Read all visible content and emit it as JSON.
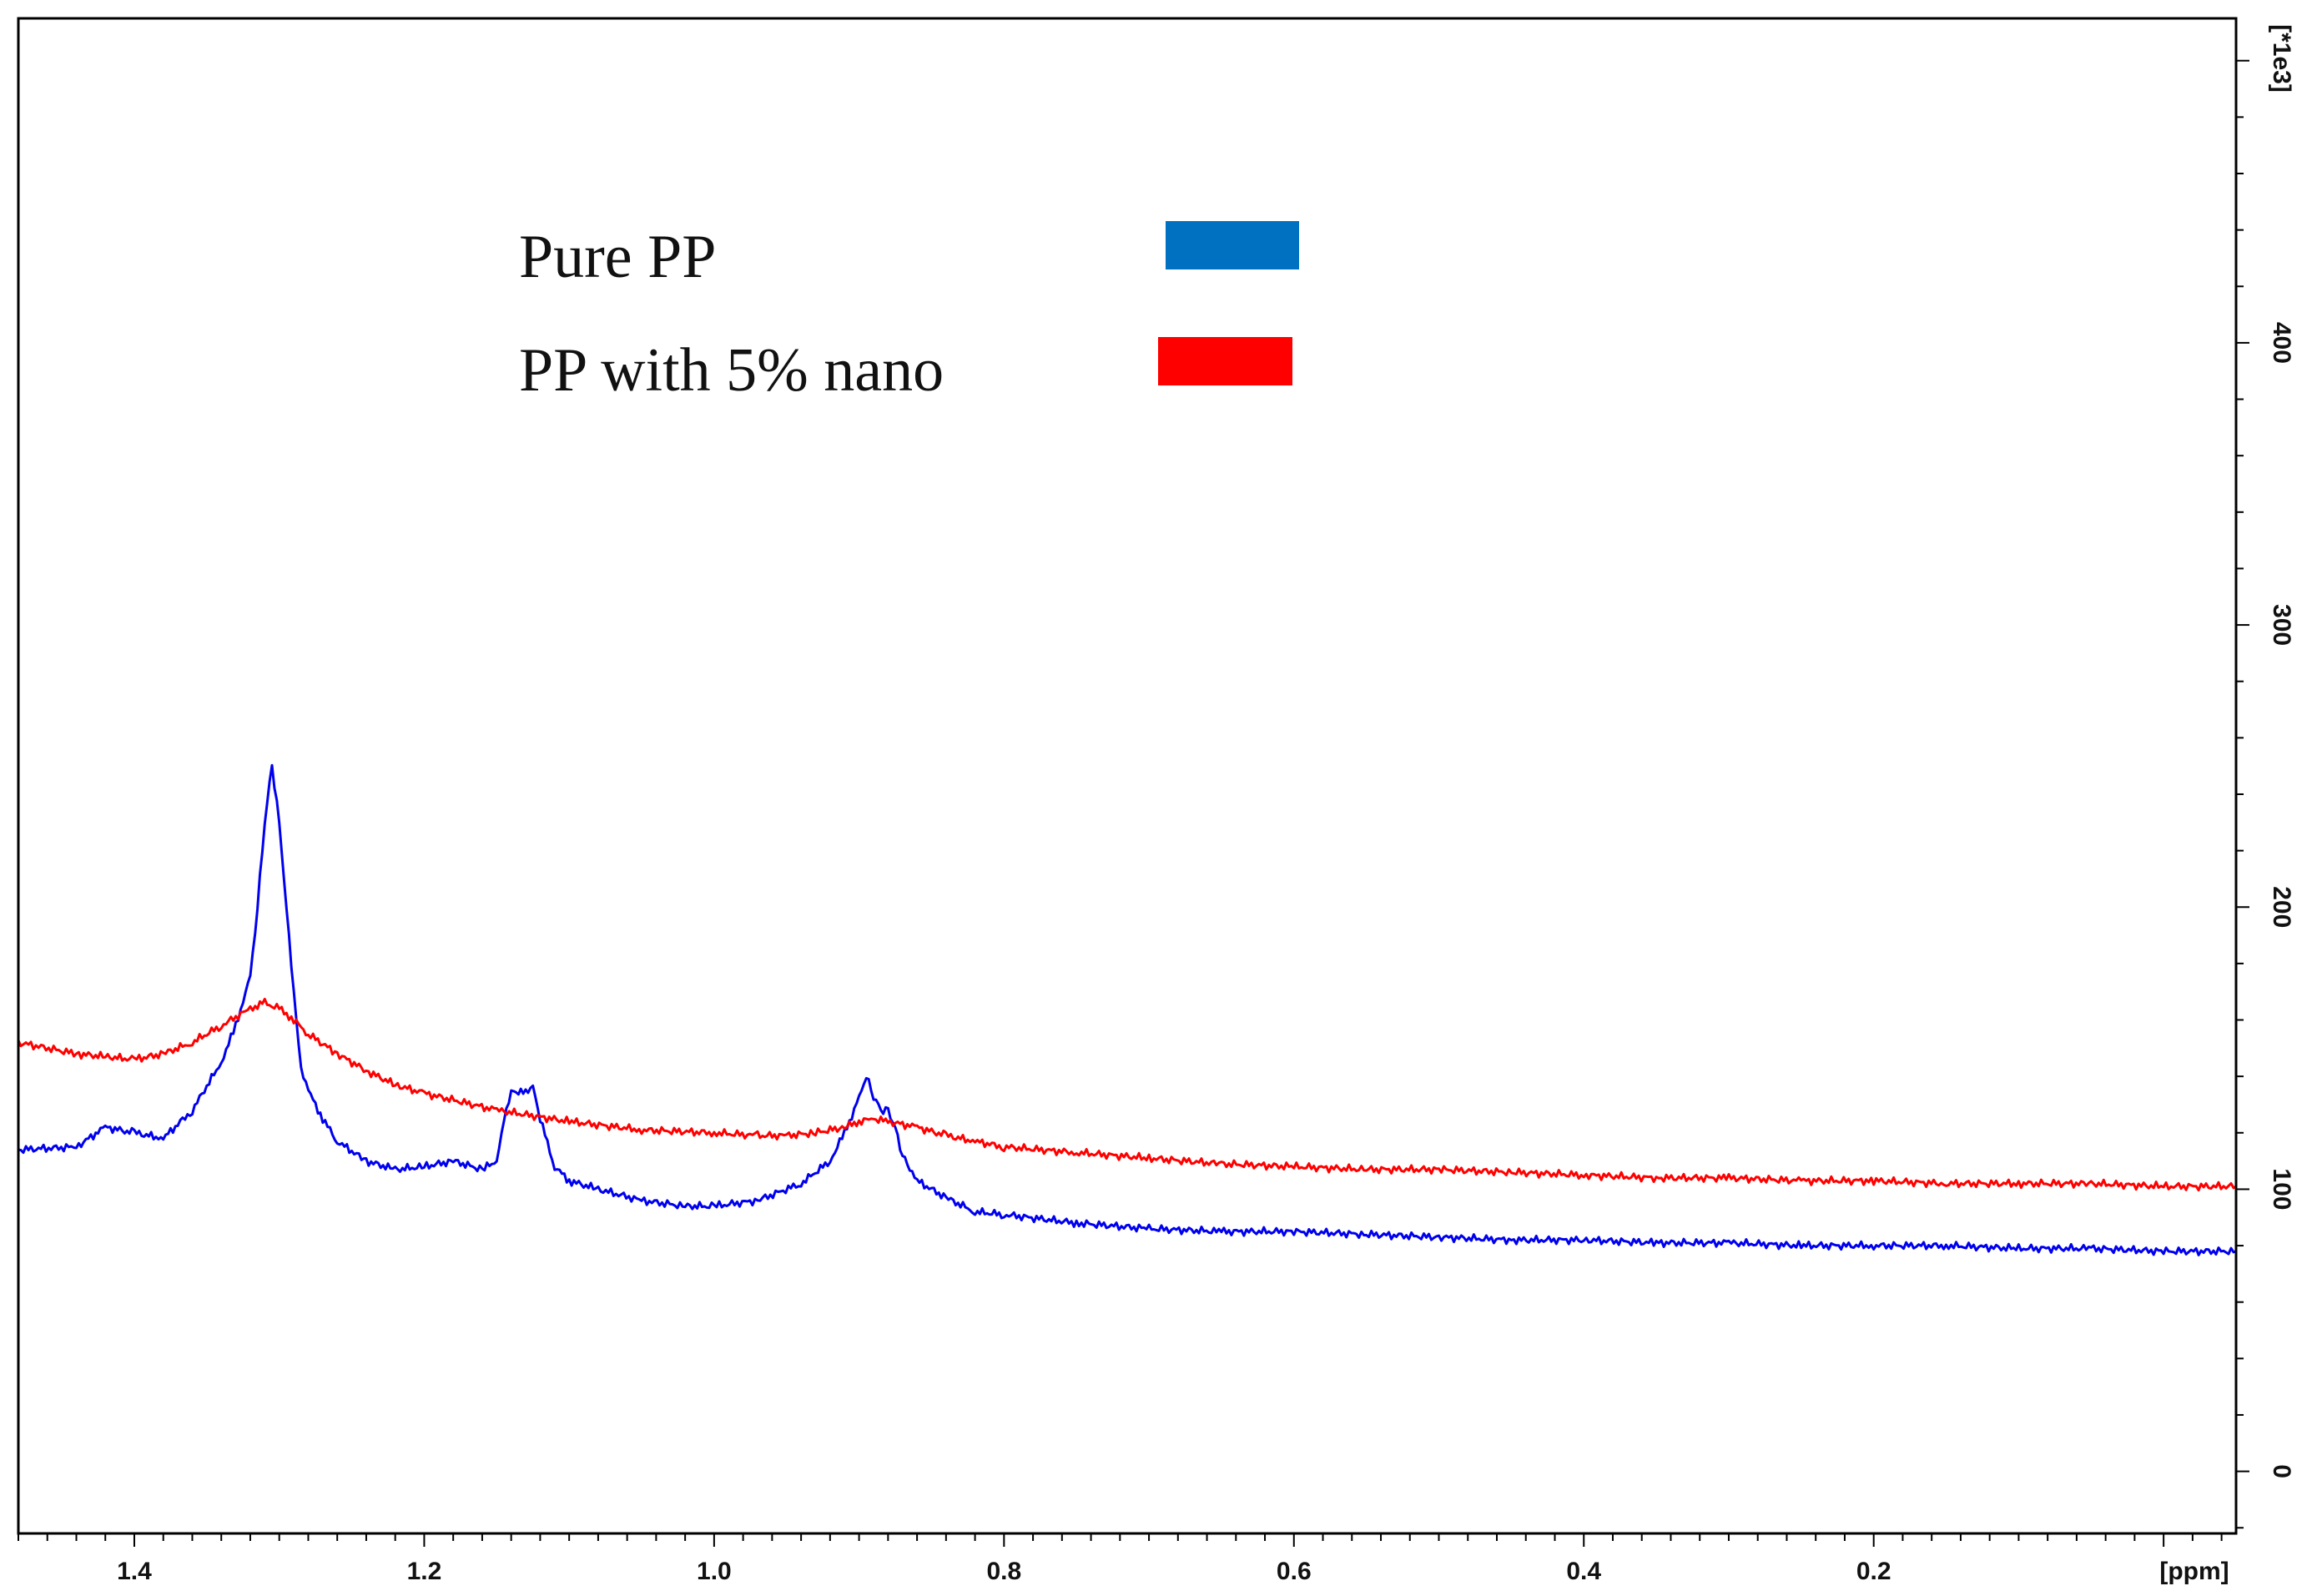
{
  "chart_data": {
    "type": "line",
    "title": "",
    "xlabel": "[ppm]",
    "ylabel": "[*1e3]",
    "xlim": [
      1.48,
      -0.05
    ],
    "ylim": [
      -22,
      515
    ],
    "x_ticks": [
      "1.4",
      "1.2",
      "1.0",
      "0.8",
      "0.6",
      "0.4",
      "0.2"
    ],
    "y_ticks": [
      "0",
      "100",
      "200",
      "300",
      "400"
    ],
    "legend_position": "top-left",
    "series": [
      {
        "name": "Pure PP",
        "color": "#0000ee",
        "legend_color": "#0070c0",
        "x": [
          1.48,
          1.44,
          1.42,
          1.4,
          1.38,
          1.36,
          1.34,
          1.33,
          1.32,
          1.315,
          1.31,
          1.305,
          1.3,
          1.295,
          1.29,
          1.285,
          1.28,
          1.27,
          1.26,
          1.24,
          1.22,
          1.2,
          1.18,
          1.16,
          1.15,
          1.145,
          1.14,
          1.13,
          1.125,
          1.12,
          1.11,
          1.1,
          1.08,
          1.05,
          1.02,
          1.0,
          0.97,
          0.94,
          0.92,
          0.91,
          0.9,
          0.895,
          0.89,
          0.885,
          0.88,
          0.875,
          0.87,
          0.86,
          0.84,
          0.82,
          0.8,
          0.75,
          0.7,
          0.65,
          0.6,
          0.55,
          0.5,
          0.45,
          0.4,
          0.35,
          0.3,
          0.25,
          0.2,
          0.15,
          0.1,
          0.05,
          0.0,
          -0.05
        ],
        "values": [
          114,
          115,
          122,
          120,
          118,
          128,
          145,
          158,
          175,
          200,
          230,
          250,
          230,
          200,
          170,
          142,
          135,
          125,
          117,
          110,
          107,
          108,
          110,
          107,
          110,
          125,
          135,
          134,
          136,
          125,
          108,
          103,
          100,
          96,
          94,
          94,
          96,
          102,
          110,
          120,
          132,
          140,
          133,
          128,
          128,
          122,
          112,
          103,
          97,
          92,
          91,
          88,
          86,
          85,
          85,
          84,
          83,
          82,
          82,
          81,
          81,
          80,
          80,
          80,
          79,
          79,
          78,
          78
        ]
      },
      {
        "name": "PP with 5% nano",
        "color": "#ff0000",
        "legend_color": "#ff0000",
        "x": [
          1.48,
          1.44,
          1.42,
          1.4,
          1.38,
          1.36,
          1.34,
          1.32,
          1.31,
          1.3,
          1.29,
          1.28,
          1.26,
          1.24,
          1.22,
          1.2,
          1.15,
          1.1,
          1.05,
          1.0,
          0.97,
          0.95,
          0.93,
          0.91,
          0.9,
          0.89,
          0.88,
          0.86,
          0.84,
          0.82,
          0.8,
          0.75,
          0.7,
          0.65,
          0.6,
          0.55,
          0.5,
          0.45,
          0.4,
          0.35,
          0.3,
          0.25,
          0.2,
          0.15,
          0.1,
          0.05,
          0.0,
          -0.05
        ],
        "values": [
          152,
          148,
          147,
          146,
          148,
          152,
          158,
          164,
          166,
          164,
          160,
          155,
          148,
          142,
          137,
          134,
          128,
          124,
          121,
          120,
          119,
          119,
          120,
          122,
          124,
          125,
          124,
          122,
          119,
          117,
          115,
          113,
          111,
          109,
          108,
          107,
          107,
          106,
          105,
          104,
          104,
          103,
          103,
          102,
          102,
          102,
          101,
          101
        ]
      }
    ]
  }
}
